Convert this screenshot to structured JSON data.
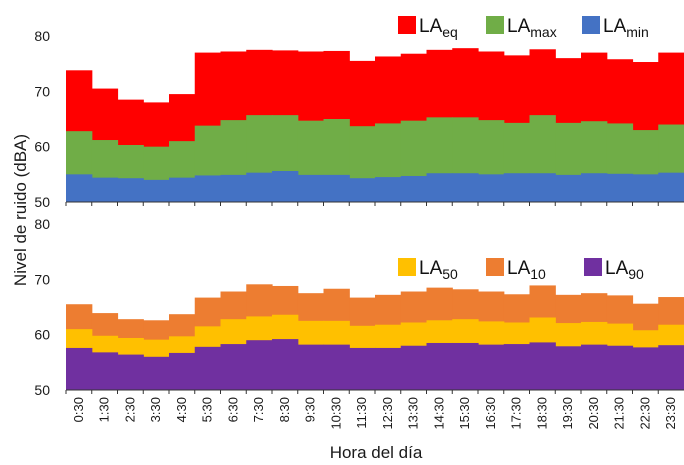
{
  "chart_data": {
    "type": "area",
    "xlabel": "Hora del día",
    "ylabel": "Nivel de ruido (dBA)",
    "x": [
      "0:30",
      "1:30",
      "2:30",
      "3:30",
      "4:30",
      "5:30",
      "6:30",
      "7:30",
      "8:30",
      "9:30",
      "10:30",
      "11:30",
      "12:30",
      "13:30",
      "14:30",
      "15:30",
      "16:30",
      "17:30",
      "18:30",
      "19:30",
      "20:30",
      "21:30",
      "22:30",
      "23:30"
    ],
    "panels": [
      {
        "ylim": [
          50,
          80
        ],
        "yticks": [
          "50",
          "60",
          "70",
          "80"
        ],
        "series": [
          {
            "name": "LAeq",
            "base": "LA",
            "sub": "eq",
            "color": "#ff0000",
            "values": [
              73.8,
              70.5,
              68.5,
              68.0,
              69.5,
              77.0,
              77.2,
              77.5,
              77.4,
              77.2,
              77.3,
              75.5,
              76.3,
              76.8,
              77.5,
              77.8,
              77.2,
              76.5,
              77.6,
              76.0,
              77.0,
              75.8,
              75.3,
              77.0
            ]
          },
          {
            "name": "LAmax",
            "base": "LA",
            "sub": "max",
            "color": "#70ad47",
            "values": [
              62.8,
              61.2,
              60.3,
              60.0,
              61.0,
              63.8,
              64.8,
              65.7,
              65.7,
              64.7,
              65.0,
              63.7,
              64.2,
              64.7,
              65.3,
              65.3,
              64.8,
              64.3,
              65.7,
              64.3,
              64.6,
              64.2,
              63.0,
              64.0
            ]
          },
          {
            "name": "LAmin",
            "base": "LA",
            "sub": "min",
            "color": "#4472c4",
            "values": [
              55.0,
              54.4,
              54.3,
              54.0,
              54.4,
              54.8,
              54.9,
              55.3,
              55.6,
              54.9,
              54.9,
              54.3,
              54.5,
              54.7,
              55.2,
              55.2,
              55.0,
              55.2,
              55.2,
              54.9,
              55.2,
              55.1,
              55.0,
              55.3
            ]
          }
        ]
      },
      {
        "ylim": [
          50,
          80
        ],
        "yticks": [
          "50",
          "60",
          "70",
          "80"
        ],
        "series": [
          {
            "name": "LA50",
            "base": "LA",
            "sub": "50",
            "color": "#ffc000",
            "values": [
              61.0,
              59.8,
              59.4,
              59.1,
              59.7,
              61.5,
              62.8,
              63.3,
              63.6,
              62.5,
              62.5,
              61.6,
              61.8,
              62.2,
              62.6,
              62.8,
              62.4,
              62.2,
              63.1,
              62.1,
              62.3,
              62.0,
              60.8,
              61.8
            ]
          },
          {
            "name": "LA10",
            "base": "LA",
            "sub": "10",
            "color": "#ed7d31",
            "values": [
              65.5,
              63.9,
              62.8,
              62.6,
              63.7,
              66.7,
              67.8,
              69.1,
              68.8,
              67.5,
              68.3,
              66.7,
              67.2,
              67.8,
              68.5,
              68.2,
              67.8,
              67.3,
              68.9,
              67.2,
              67.5,
              67.1,
              65.6,
              66.8
            ]
          },
          {
            "name": "LA90",
            "base": "LA",
            "sub": "90",
            "color": "#7030a0",
            "values": [
              57.6,
              56.8,
              56.4,
              56.0,
              56.7,
              57.8,
              58.3,
              59.0,
              59.2,
              58.2,
              58.2,
              57.6,
              57.6,
              58.0,
              58.5,
              58.5,
              58.2,
              58.3,
              58.6,
              57.9,
              58.2,
              58.0,
              57.7,
              58.1
            ]
          }
        ]
      }
    ]
  }
}
